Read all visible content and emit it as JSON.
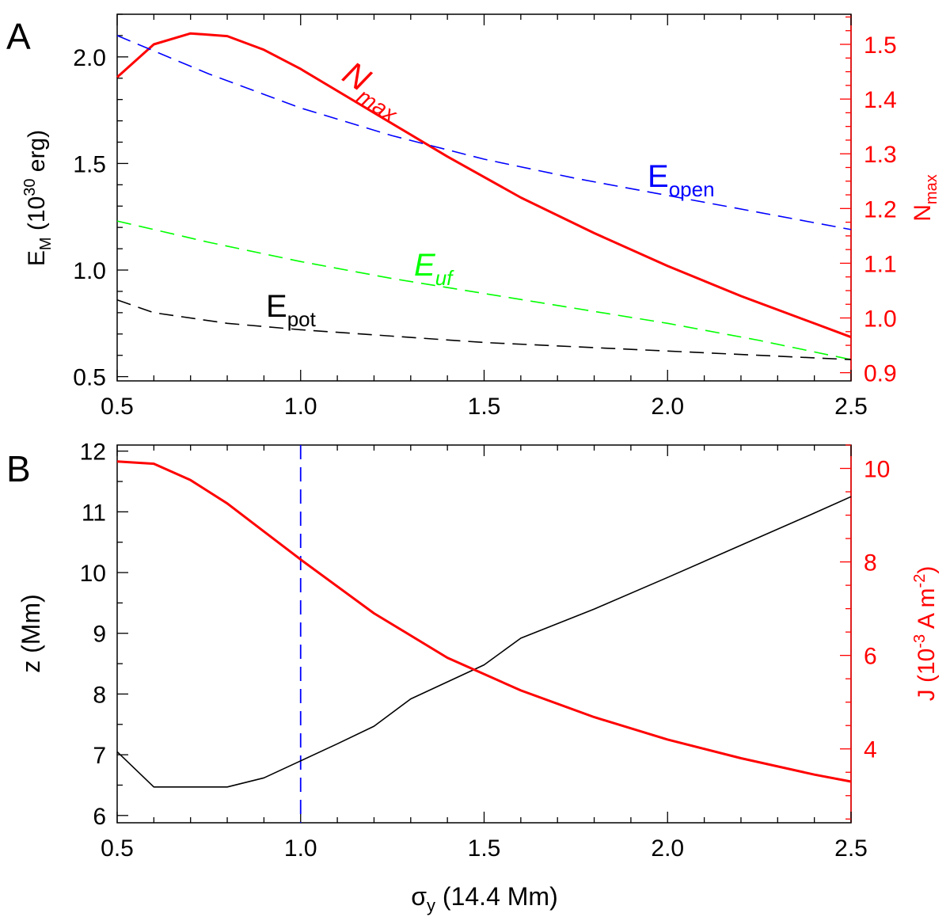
{
  "chart_data": [
    {
      "type": "line",
      "panel_label": "A",
      "x_range": [
        0.5,
        2.5
      ],
      "x_ticks": [
        "0.5",
        "1.0",
        "1.5",
        "2.0",
        "2.5"
      ],
      "x_tick_values": [
        0.5,
        1.0,
        1.5,
        2.0,
        2.5
      ],
      "y_left": {
        "label_main": "E",
        "label_sub": "M",
        "label_rest": " (10",
        "label_sup": "30",
        "label_end": " erg)",
        "range": [
          0.48,
          2.2
        ],
        "ticks": [
          "0.5",
          "1.0",
          "1.5",
          "2.0"
        ],
        "tick_values": [
          0.5,
          1.0,
          1.5,
          2.0
        ],
        "color": "#000000"
      },
      "y_right": {
        "label_main": "N",
        "label_sub": "max",
        "range": [
          0.885,
          1.555
        ],
        "ticks": [
          "0.9",
          "1.0",
          "1.1",
          "1.2",
          "1.3",
          "1.4",
          "1.5"
        ],
        "tick_values": [
          0.9,
          1.0,
          1.1,
          1.2,
          1.3,
          1.4,
          1.5
        ],
        "color": "#ff0000"
      },
      "series": [
        {
          "name": "N_max",
          "label_main": "N",
          "label_sub": "max",
          "axis": "right",
          "color": "#ff0000",
          "style": "solid",
          "x": [
            0.5,
            0.6,
            0.7,
            0.8,
            0.9,
            1.0,
            1.2,
            1.4,
            1.6,
            1.8,
            2.0,
            2.2,
            2.4,
            2.5
          ],
          "y": [
            1.44,
            1.5,
            1.52,
            1.515,
            1.49,
            1.455,
            1.375,
            1.295,
            1.22,
            1.155,
            1.095,
            1.04,
            0.99,
            0.965
          ]
        },
        {
          "name": "E_open",
          "label_main": "E",
          "label_sub": "open",
          "axis": "left",
          "color": "#0000ff",
          "style": "dashed",
          "x": [
            0.5,
            0.75,
            1.0,
            1.25,
            1.5,
            1.75,
            2.0,
            2.25,
            2.5
          ],
          "y": [
            2.1,
            1.92,
            1.76,
            1.63,
            1.52,
            1.43,
            1.35,
            1.27,
            1.19
          ]
        },
        {
          "name": "E_uf",
          "label_main": "E",
          "label_sub": "uf",
          "axis": "left",
          "color": "#00ff00",
          "style": "dashed",
          "x": [
            0.5,
            0.75,
            1.0,
            1.25,
            1.5,
            1.75,
            2.0,
            2.25,
            2.5
          ],
          "y": [
            1.23,
            1.13,
            1.04,
            0.96,
            0.89,
            0.82,
            0.75,
            0.67,
            0.58
          ]
        },
        {
          "name": "E_pot",
          "label_main": "E",
          "label_sub": "pot",
          "axis": "left",
          "color": "#000000",
          "style": "dashed",
          "x": [
            0.5,
            0.6,
            0.8,
            1.0,
            1.25,
            1.5,
            1.75,
            2.0,
            2.25,
            2.5
          ],
          "y": [
            0.86,
            0.8,
            0.75,
            0.72,
            0.69,
            0.66,
            0.64,
            0.62,
            0.6,
            0.58
          ]
        }
      ]
    },
    {
      "type": "line",
      "panel_label": "B",
      "x_range": [
        0.5,
        2.5
      ],
      "x_ticks": [
        "0.5",
        "1.0",
        "1.5",
        "2.0",
        "2.5"
      ],
      "x_tick_values": [
        0.5,
        1.0,
        1.5,
        2.0,
        2.5
      ],
      "xlabel_main": "σ",
      "xlabel_sub": "y",
      "xlabel_rest": " (14.4 Mm)",
      "y_left": {
        "label": "z (Mm)",
        "range": [
          5.88,
          12.1
        ],
        "ticks": [
          "6",
          "7",
          "8",
          "9",
          "10",
          "11",
          "12"
        ],
        "tick_values": [
          6,
          7,
          8,
          9,
          10,
          11,
          12
        ],
        "color": "#000000"
      },
      "y_right": {
        "label_main": "J (10",
        "label_sup": "-3",
        "label_rest": " A m",
        "label_sup2": "-2",
        "label_end": ")",
        "range": [
          2.42,
          10.5
        ],
        "ticks": [
          "4",
          "6",
          "8",
          "10"
        ],
        "tick_values": [
          4,
          6,
          8,
          10
        ],
        "color": "#ff0000"
      },
      "vline": {
        "x": 1.0,
        "color": "#0000ff",
        "style": "dashed"
      },
      "series": [
        {
          "name": "z",
          "axis": "left",
          "color": "#000000",
          "style": "solid",
          "x": [
            0.5,
            0.6,
            0.7,
            0.8,
            0.9,
            1.0,
            1.1,
            1.2,
            1.3,
            1.4,
            1.5,
            1.6,
            1.8,
            2.0,
            2.2,
            2.4,
            2.5
          ],
          "y": [
            7.05,
            6.47,
            6.47,
            6.47,
            6.62,
            6.9,
            7.18,
            7.47,
            7.92,
            8.2,
            8.48,
            8.92,
            9.4,
            9.92,
            10.45,
            10.98,
            11.25
          ]
        },
        {
          "name": "J",
          "axis": "right",
          "color": "#ff0000",
          "style": "solid",
          "x": [
            0.5,
            0.6,
            0.7,
            0.8,
            0.9,
            1.0,
            1.2,
            1.4,
            1.6,
            1.8,
            2.0,
            2.2,
            2.4,
            2.5
          ],
          "y": [
            10.15,
            10.1,
            9.75,
            9.25,
            8.65,
            8.05,
            6.9,
            5.95,
            5.25,
            4.68,
            4.2,
            3.8,
            3.45,
            3.3
          ]
        }
      ]
    }
  ]
}
